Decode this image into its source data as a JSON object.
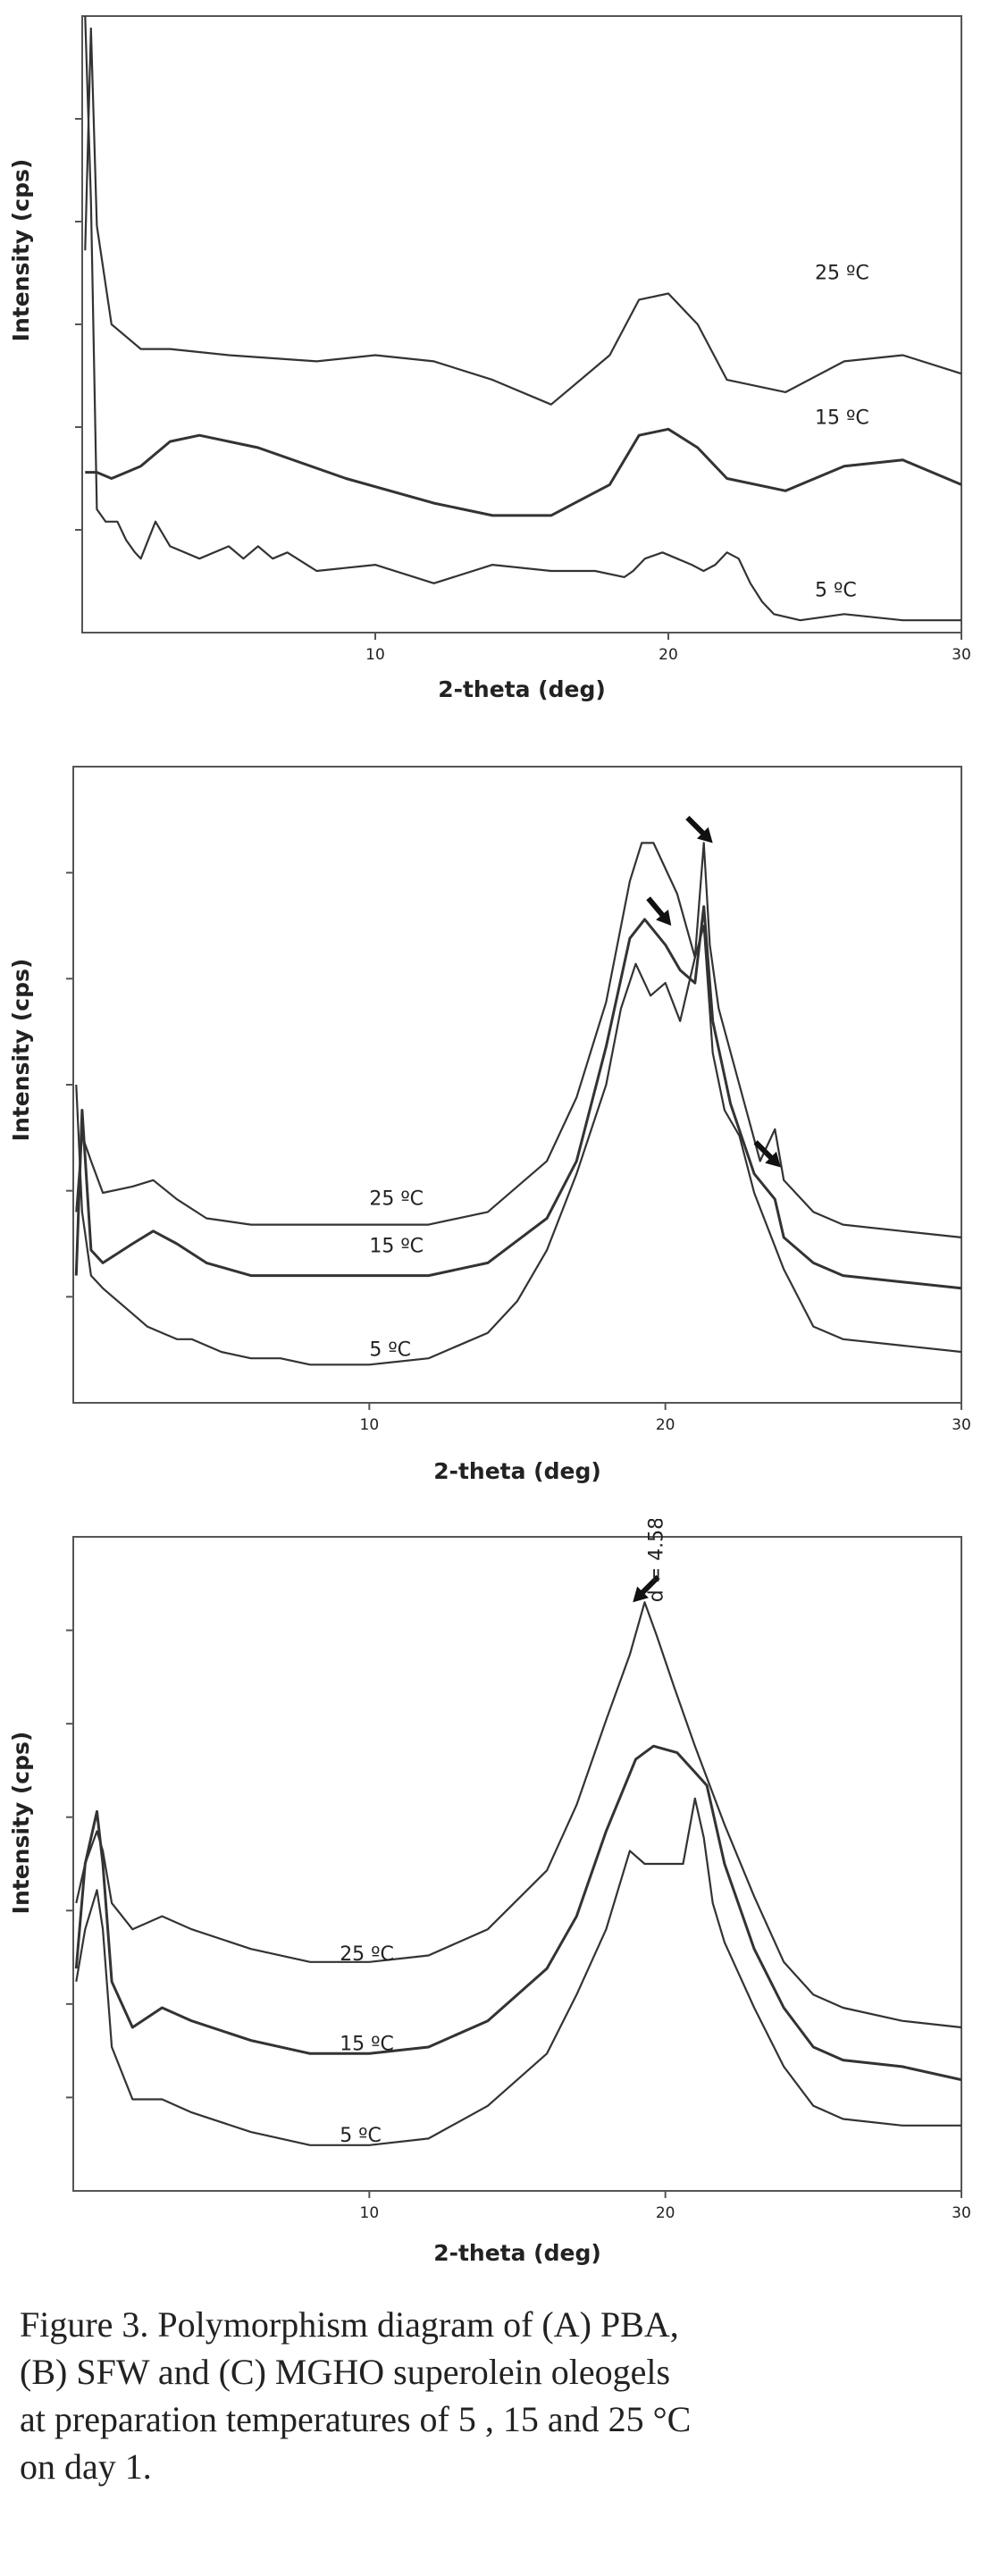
{
  "chart_data": [
    {
      "type": "line",
      "xlabel": "2-theta (deg)",
      "ylabel": "Intensity (cps)",
      "xlim": [
        0,
        30
      ],
      "x_ticks": [
        "10",
        "20",
        "30"
      ],
      "series": [
        {
          "name": "25 ºC",
          "x": [
            0.1,
            0.3,
            0.5,
            1,
            2,
            3,
            5,
            8,
            10,
            12,
            14,
            16,
            18,
            19,
            20,
            21,
            22,
            24,
            26,
            28,
            30
          ],
          "y": [
            0.62,
            0.98,
            0.66,
            0.5,
            0.46,
            0.46,
            0.45,
            0.44,
            0.45,
            0.44,
            0.41,
            0.37,
            0.45,
            0.54,
            0.55,
            0.5,
            0.41,
            0.39,
            0.44,
            0.45,
            0.42
          ]
        },
        {
          "name": "15 ºC",
          "x": [
            0.1,
            0.5,
            1,
            2,
            3,
            4,
            6,
            9,
            12,
            14,
            16,
            18,
            19,
            20,
            21,
            22,
            24,
            26,
            28,
            30
          ],
          "y": [
            0.26,
            0.26,
            0.25,
            0.27,
            0.31,
            0.32,
            0.3,
            0.25,
            0.21,
            0.19,
            0.19,
            0.24,
            0.32,
            0.33,
            0.3,
            0.25,
            0.23,
            0.27,
            0.28,
            0.24
          ]
        },
        {
          "name": "5 ºC",
          "x": [
            0.1,
            0.3,
            0.5,
            0.8,
            1.2,
            1.5,
            1.8,
            2,
            2.5,
            3,
            4,
            5,
            5.5,
            6,
            6.5,
            7,
            8,
            10,
            12,
            14,
            16,
            17.5,
            18.5,
            18.8,
            19.2,
            19.8,
            20.3,
            20.8,
            21.2,
            21.6,
            22,
            22.4,
            22.8,
            23.2,
            23.6,
            24.5,
            26,
            28,
            30
          ],
          "y": [
            1.0,
            0.7,
            0.2,
            0.18,
            0.18,
            0.15,
            0.13,
            0.12,
            0.18,
            0.14,
            0.12,
            0.14,
            0.12,
            0.14,
            0.12,
            0.13,
            0.1,
            0.11,
            0.08,
            0.11,
            0.1,
            0.1,
            0.09,
            0.1,
            0.12,
            0.13,
            0.12,
            0.11,
            0.1,
            0.11,
            0.13,
            0.12,
            0.08,
            0.05,
            0.03,
            0.02,
            0.03,
            0.02,
            0.02
          ]
        }
      ],
      "annotations": []
    },
    {
      "type": "line",
      "xlabel": "2-theta (deg)",
      "ylabel": "Intensity (cps)",
      "xlim": [
        0,
        30
      ],
      "x_ticks": [
        "10",
        "20",
        "30"
      ],
      "series": [
        {
          "name": "25 ºC",
          "x": [
            0.1,
            0.3,
            0.6,
            1,
            2,
            2.7,
            3.5,
            4.5,
            6,
            8,
            10,
            12,
            14,
            16,
            17,
            18,
            18.8,
            19.2,
            19.6,
            20.4,
            21,
            21.3,
            21.5,
            21.8,
            22.5,
            23.2,
            23.7,
            24,
            25,
            26,
            28,
            30
          ],
          "y": [
            0.3,
            0.42,
            0.38,
            0.33,
            0.34,
            0.35,
            0.32,
            0.29,
            0.28,
            0.28,
            0.28,
            0.28,
            0.3,
            0.38,
            0.48,
            0.63,
            0.82,
            0.88,
            0.88,
            0.8,
            0.7,
            0.88,
            0.72,
            0.62,
            0.5,
            0.38,
            0.43,
            0.35,
            0.3,
            0.28,
            0.27,
            0.26
          ]
        },
        {
          "name": "15 ºC",
          "x": [
            0.1,
            0.3,
            0.6,
            1,
            2,
            2.7,
            3.5,
            4.5,
            6,
            8,
            10,
            12,
            14,
            16,
            17,
            18,
            18.8,
            19.3,
            20,
            20.5,
            21,
            21.3,
            21.6,
            22.2,
            23,
            23.7,
            24,
            25,
            26,
            28,
            30
          ],
          "y": [
            0.2,
            0.46,
            0.24,
            0.22,
            0.25,
            0.27,
            0.25,
            0.22,
            0.2,
            0.2,
            0.2,
            0.2,
            0.22,
            0.29,
            0.38,
            0.56,
            0.73,
            0.76,
            0.72,
            0.68,
            0.66,
            0.78,
            0.6,
            0.47,
            0.36,
            0.32,
            0.26,
            0.22,
            0.2,
            0.19,
            0.18
          ]
        },
        {
          "name": "5 ºC",
          "x": [
            0.1,
            0.3,
            0.6,
            1,
            1.5,
            2,
            2.5,
            3,
            3.5,
            4,
            5,
            6,
            7,
            8,
            10,
            12,
            14,
            15,
            16,
            17,
            18,
            18.5,
            19,
            19.5,
            20,
            20.5,
            21,
            21.3,
            21.6,
            22,
            22.5,
            23,
            24,
            25,
            26,
            28,
            30
          ],
          "y": [
            0.5,
            0.3,
            0.2,
            0.18,
            0.16,
            0.14,
            0.12,
            0.11,
            0.1,
            0.1,
            0.08,
            0.07,
            0.07,
            0.06,
            0.06,
            0.07,
            0.11,
            0.16,
            0.24,
            0.36,
            0.5,
            0.62,
            0.69,
            0.64,
            0.66,
            0.6,
            0.7,
            0.75,
            0.55,
            0.46,
            0.42,
            0.33,
            0.21,
            0.12,
            0.1,
            0.09,
            0.08
          ]
        }
      ],
      "annotations": []
    },
    {
      "type": "line",
      "xlabel": "2-theta (deg)",
      "ylabel": "Intensity (cps)",
      "xlim": [
        0,
        30
      ],
      "x_ticks": [
        "10",
        "20",
        "30"
      ],
      "series": [
        {
          "name": "25 ºC",
          "x": [
            0.1,
            0.4,
            0.8,
            1,
            1.3,
            2,
            3,
            4,
            6,
            8,
            10,
            12,
            14,
            16,
            17,
            18,
            18.8,
            19.3,
            19.7,
            20.3,
            21,
            22,
            23,
            24,
            25,
            26,
            28,
            30
          ],
          "y": [
            0.44,
            0.5,
            0.55,
            0.52,
            0.44,
            0.4,
            0.42,
            0.4,
            0.37,
            0.35,
            0.35,
            0.36,
            0.4,
            0.49,
            0.59,
            0.72,
            0.82,
            0.9,
            0.85,
            0.77,
            0.68,
            0.56,
            0.45,
            0.35,
            0.3,
            0.28,
            0.26,
            0.25
          ]
        },
        {
          "name": "15 ºC",
          "x": [
            0.1,
            0.4,
            0.8,
            1,
            1.3,
            2,
            3,
            4,
            6,
            8,
            10,
            12,
            14,
            16,
            17,
            18,
            19,
            19.6,
            20.4,
            21,
            21.4,
            22,
            23,
            24,
            25,
            26,
            28,
            30
          ],
          "y": [
            0.34,
            0.5,
            0.58,
            0.5,
            0.32,
            0.25,
            0.28,
            0.26,
            0.23,
            0.21,
            0.21,
            0.22,
            0.26,
            0.34,
            0.42,
            0.55,
            0.66,
            0.68,
            0.67,
            0.64,
            0.62,
            0.5,
            0.37,
            0.28,
            0.22,
            0.2,
            0.19,
            0.17
          ]
        },
        {
          "name": "5 ºC",
          "x": [
            0.1,
            0.4,
            0.8,
            1,
            1.3,
            2,
            3,
            4,
            6,
            8,
            10,
            12,
            14,
            16,
            17,
            18,
            18.8,
            19.3,
            20,
            20.6,
            21,
            21.3,
            21.6,
            22,
            22.5,
            23,
            24,
            25,
            26,
            28,
            30
          ],
          "y": [
            0.32,
            0.4,
            0.46,
            0.4,
            0.22,
            0.14,
            0.14,
            0.12,
            0.09,
            0.07,
            0.07,
            0.08,
            0.13,
            0.21,
            0.3,
            0.4,
            0.52,
            0.5,
            0.5,
            0.5,
            0.6,
            0.54,
            0.44,
            0.38,
            0.33,
            0.28,
            0.19,
            0.13,
            0.11,
            0.1,
            0.1
          ]
        }
      ],
      "annotations": [
        "d = 4.58"
      ]
    }
  ],
  "caption": [
    "Figure 3. Polymorphism diagram of (A) PBA,",
    "(B) SFW and (C) MGHO superolein oleogels",
    "at preparation temperatures of 5 , 15 and 25 °C",
    "on day 1."
  ],
  "colors": {
    "line": "#333333",
    "axis": "#555555",
    "text": "#222222"
  }
}
